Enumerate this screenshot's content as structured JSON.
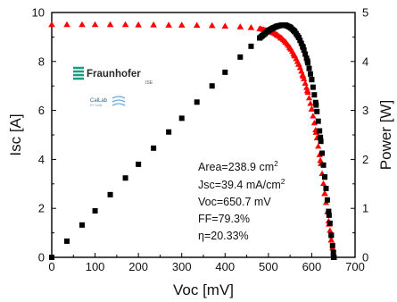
{
  "chart_data": {
    "type": "scatter",
    "xlabel": "Voc [mV]",
    "ylabel": "Isc [A]",
    "y2label": "Power [W]",
    "xlim": [
      0,
      700
    ],
    "ylim": [
      0,
      10
    ],
    "y2lim": [
      0,
      5
    ],
    "x_ticks": [
      "0",
      "100",
      "200",
      "300",
      "400",
      "500",
      "600",
      "700"
    ],
    "y_ticks": [
      "0",
      "2",
      "4",
      "6",
      "8",
      "10"
    ],
    "y2_ticks": [
      "0",
      "1",
      "2",
      "3",
      "4",
      "5"
    ],
    "grid": false,
    "series": [
      {
        "marker": "triangle",
        "color": "#ff0000",
        "axis": "left",
        "x": [
          0,
          35,
          70,
          100,
          135,
          170,
          200,
          235,
          270,
          300,
          335,
          370,
          400,
          435,
          460,
          480,
          500,
          510,
          520,
          530,
          540,
          550,
          560,
          570,
          580,
          590,
          600,
          610,
          620,
          630,
          640,
          645,
          650,
          651
        ],
        "y": [
          9.5,
          9.5,
          9.5,
          9.5,
          9.5,
          9.5,
          9.49,
          9.49,
          9.48,
          9.48,
          9.47,
          9.46,
          9.44,
          9.41,
          9.38,
          9.33,
          9.25,
          9.18,
          9.08,
          8.95,
          8.78,
          8.55,
          8.25,
          7.88,
          7.4,
          6.8,
          6.05,
          5.1,
          3.95,
          2.6,
          1.35,
          0.7,
          0.15,
          0.0
        ]
      },
      {
        "marker": "square",
        "color": "#000000",
        "axis": "right",
        "x": [
          0,
          35,
          70,
          100,
          135,
          170,
          200,
          235,
          270,
          300,
          335,
          370,
          400,
          435,
          460,
          480,
          500,
          510,
          520,
          530,
          540,
          550,
          560,
          570,
          580,
          590,
          600,
          610,
          620,
          630,
          640,
          645,
          650,
          651
        ],
        "y": [
          0.0,
          0.33,
          0.66,
          0.95,
          1.28,
          1.62,
          1.9,
          2.23,
          2.56,
          2.84,
          3.17,
          3.5,
          3.78,
          4.09,
          4.31,
          4.48,
          4.63,
          4.68,
          4.72,
          4.74,
          4.74,
          4.7,
          4.62,
          4.49,
          4.29,
          4.01,
          3.63,
          3.11,
          2.45,
          1.64,
          0.86,
          0.45,
          0.1,
          0.0
        ]
      }
    ],
    "annotation": {
      "area": "Area=238.9 cm",
      "area_sup": "2",
      "jsc": "Jsc=39.4 mA/cm",
      "jsc_sup": "2",
      "voc": "Voc=650.7 mV",
      "ff": "FF=79.3%",
      "eta": "η=20.33%"
    },
    "logos": {
      "fraunhofer": "Fraunhofer",
      "fraunhofer_sub": "ISE",
      "callab": "CalLab",
      "callab_sub": "PV Cells"
    }
  }
}
